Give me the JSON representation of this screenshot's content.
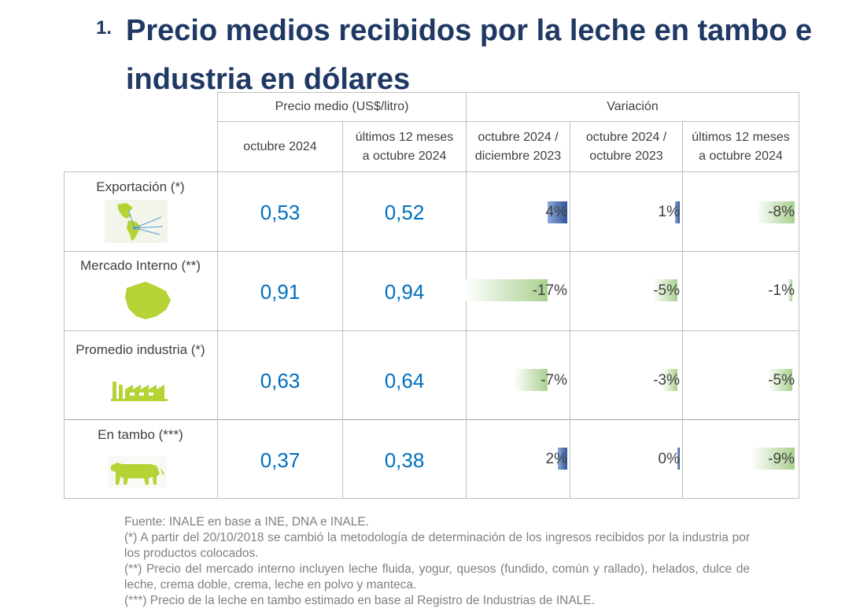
{
  "title": {
    "number": "1.",
    "text": "Precio medios recibidos por la leche en tambo e industria en dólares"
  },
  "header": {
    "group_price": "Precio medio (US$/litro)",
    "group_variation": "Variación",
    "col_price_1": "octubre 2024",
    "col_price_2_line1": "últimos 12 meses",
    "col_price_2_line2": "a octubre 2024",
    "col_var_1_line1": "octubre 2024 /",
    "col_var_1_line2": "diciembre 2023",
    "col_var_2_line1": "octubre 2024 /",
    "col_var_2_line2": "octubre 2023",
    "col_var_3_line1": "últimos 12 meses",
    "col_var_3_line2": "a octubre 2024"
  },
  "rows": [
    {
      "label": "Exportación (*)",
      "icon": "americas-map-icon",
      "price_oct": "0,53",
      "price_12m": "0,52",
      "var_dec": {
        "text": "4%",
        "value": 4
      },
      "var_oct": {
        "text": "1%",
        "value": 1
      },
      "var_12m": {
        "text": "-8%",
        "value": -8
      }
    },
    {
      "label": "Mercado Interno (**)",
      "icon": "uruguay-map-icon",
      "price_oct": "0,91",
      "price_12m": "0,94",
      "var_dec": {
        "text": "-17%",
        "value": -17
      },
      "var_oct": {
        "text": "-5%",
        "value": -5
      },
      "var_12m": {
        "text": "-1%",
        "value": -1
      }
    },
    {
      "label": "Promedio industria (*)",
      "icon": "factory-icon",
      "price_oct": "0,63",
      "price_12m": "0,64",
      "var_dec": {
        "text": "-7%",
        "value": -7
      },
      "var_oct": {
        "text": "-3%",
        "value": -3
      },
      "var_12m": {
        "text": "-5%",
        "value": -5
      }
    },
    {
      "label": "En tambo (***)",
      "icon": "cow-icon",
      "price_oct": "0,37",
      "price_12m": "0,38",
      "var_dec": {
        "text": "2%",
        "value": 2
      },
      "var_oct": {
        "text": "0%",
        "value": 0
      },
      "var_12m": {
        "text": "-9%",
        "value": -9
      }
    }
  ],
  "notes": {
    "source": "Fuente: INALE en base a INE, DNA e INALE.",
    "note1": "(*) A partir del 20/10/2018 se cambió la metodología de determinación de los ingresos recibidos por la industria por los productos colocados.",
    "note2": "(**) Precio del mercado interno incluyen leche fluida, yogur, quesos (fundido, común y rallado), helados, dulce de leche, crema doble, crema, leche en polvo y manteca.",
    "note3": "(***) Precio de la leche en tambo estimado en base al Registro de Industrias de INALE."
  },
  "colors": {
    "title": "#1f3864",
    "price": "#0070c0",
    "positive_bar": "#2f5597",
    "negative_bar": "#a9d08e",
    "icon_green": "#b5d335"
  }
}
